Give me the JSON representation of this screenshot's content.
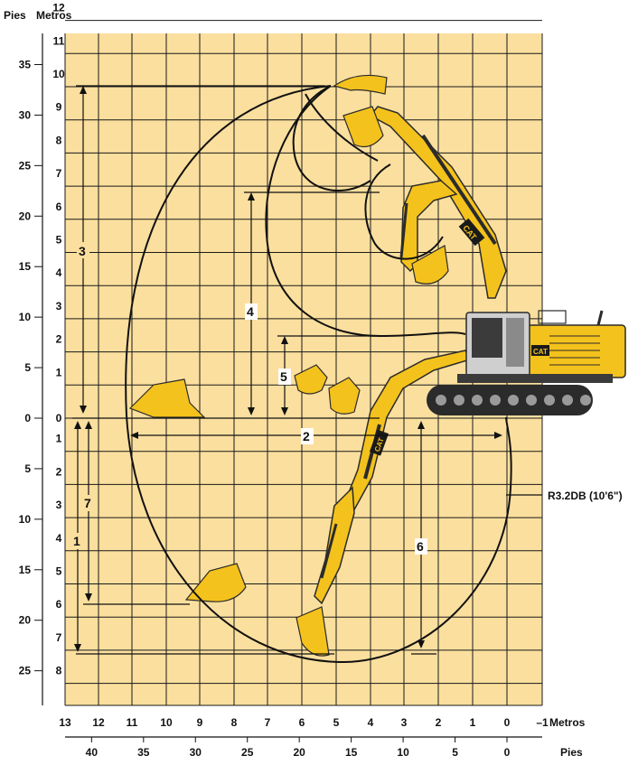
{
  "diagram": {
    "units": {
      "feet": "Pies",
      "meters": "Metros"
    },
    "left_axis": {
      "meters_up": [
        "12",
        "11",
        "10",
        "9",
        "8",
        "7",
        "6",
        "5",
        "4",
        "3",
        "2",
        "1",
        "0"
      ],
      "meters_down": [
        "1",
        "2",
        "3",
        "4",
        "5",
        "6",
        "7",
        "8"
      ],
      "feet_up": [
        "35",
        "30",
        "25",
        "20",
        "15",
        "10",
        "5",
        "0"
      ],
      "feet_down": [
        "5",
        "10",
        "15",
        "20",
        "25"
      ]
    },
    "bottom_axis": {
      "meters": [
        "13",
        "12",
        "11",
        "10",
        "9",
        "8",
        "7",
        "6",
        "5",
        "4",
        "3",
        "2",
        "1",
        "0",
        "–1"
      ],
      "feet": [
        "40",
        "35",
        "30",
        "25",
        "20",
        "15",
        "10",
        "5",
        "0"
      ]
    },
    "dimension_labels": [
      "1",
      "2",
      "3",
      "4",
      "5",
      "6",
      "7"
    ],
    "stick_label": "R3.2DB (10'6\")",
    "brand_logo": "CAT",
    "colors": {
      "background_fill": "#fbdf9e",
      "grid_line": "#1a1a1a",
      "machine_yellow": "#f4c21c",
      "machine_dark": "#2b2b2b",
      "envelope_line": "#111111"
    }
  }
}
